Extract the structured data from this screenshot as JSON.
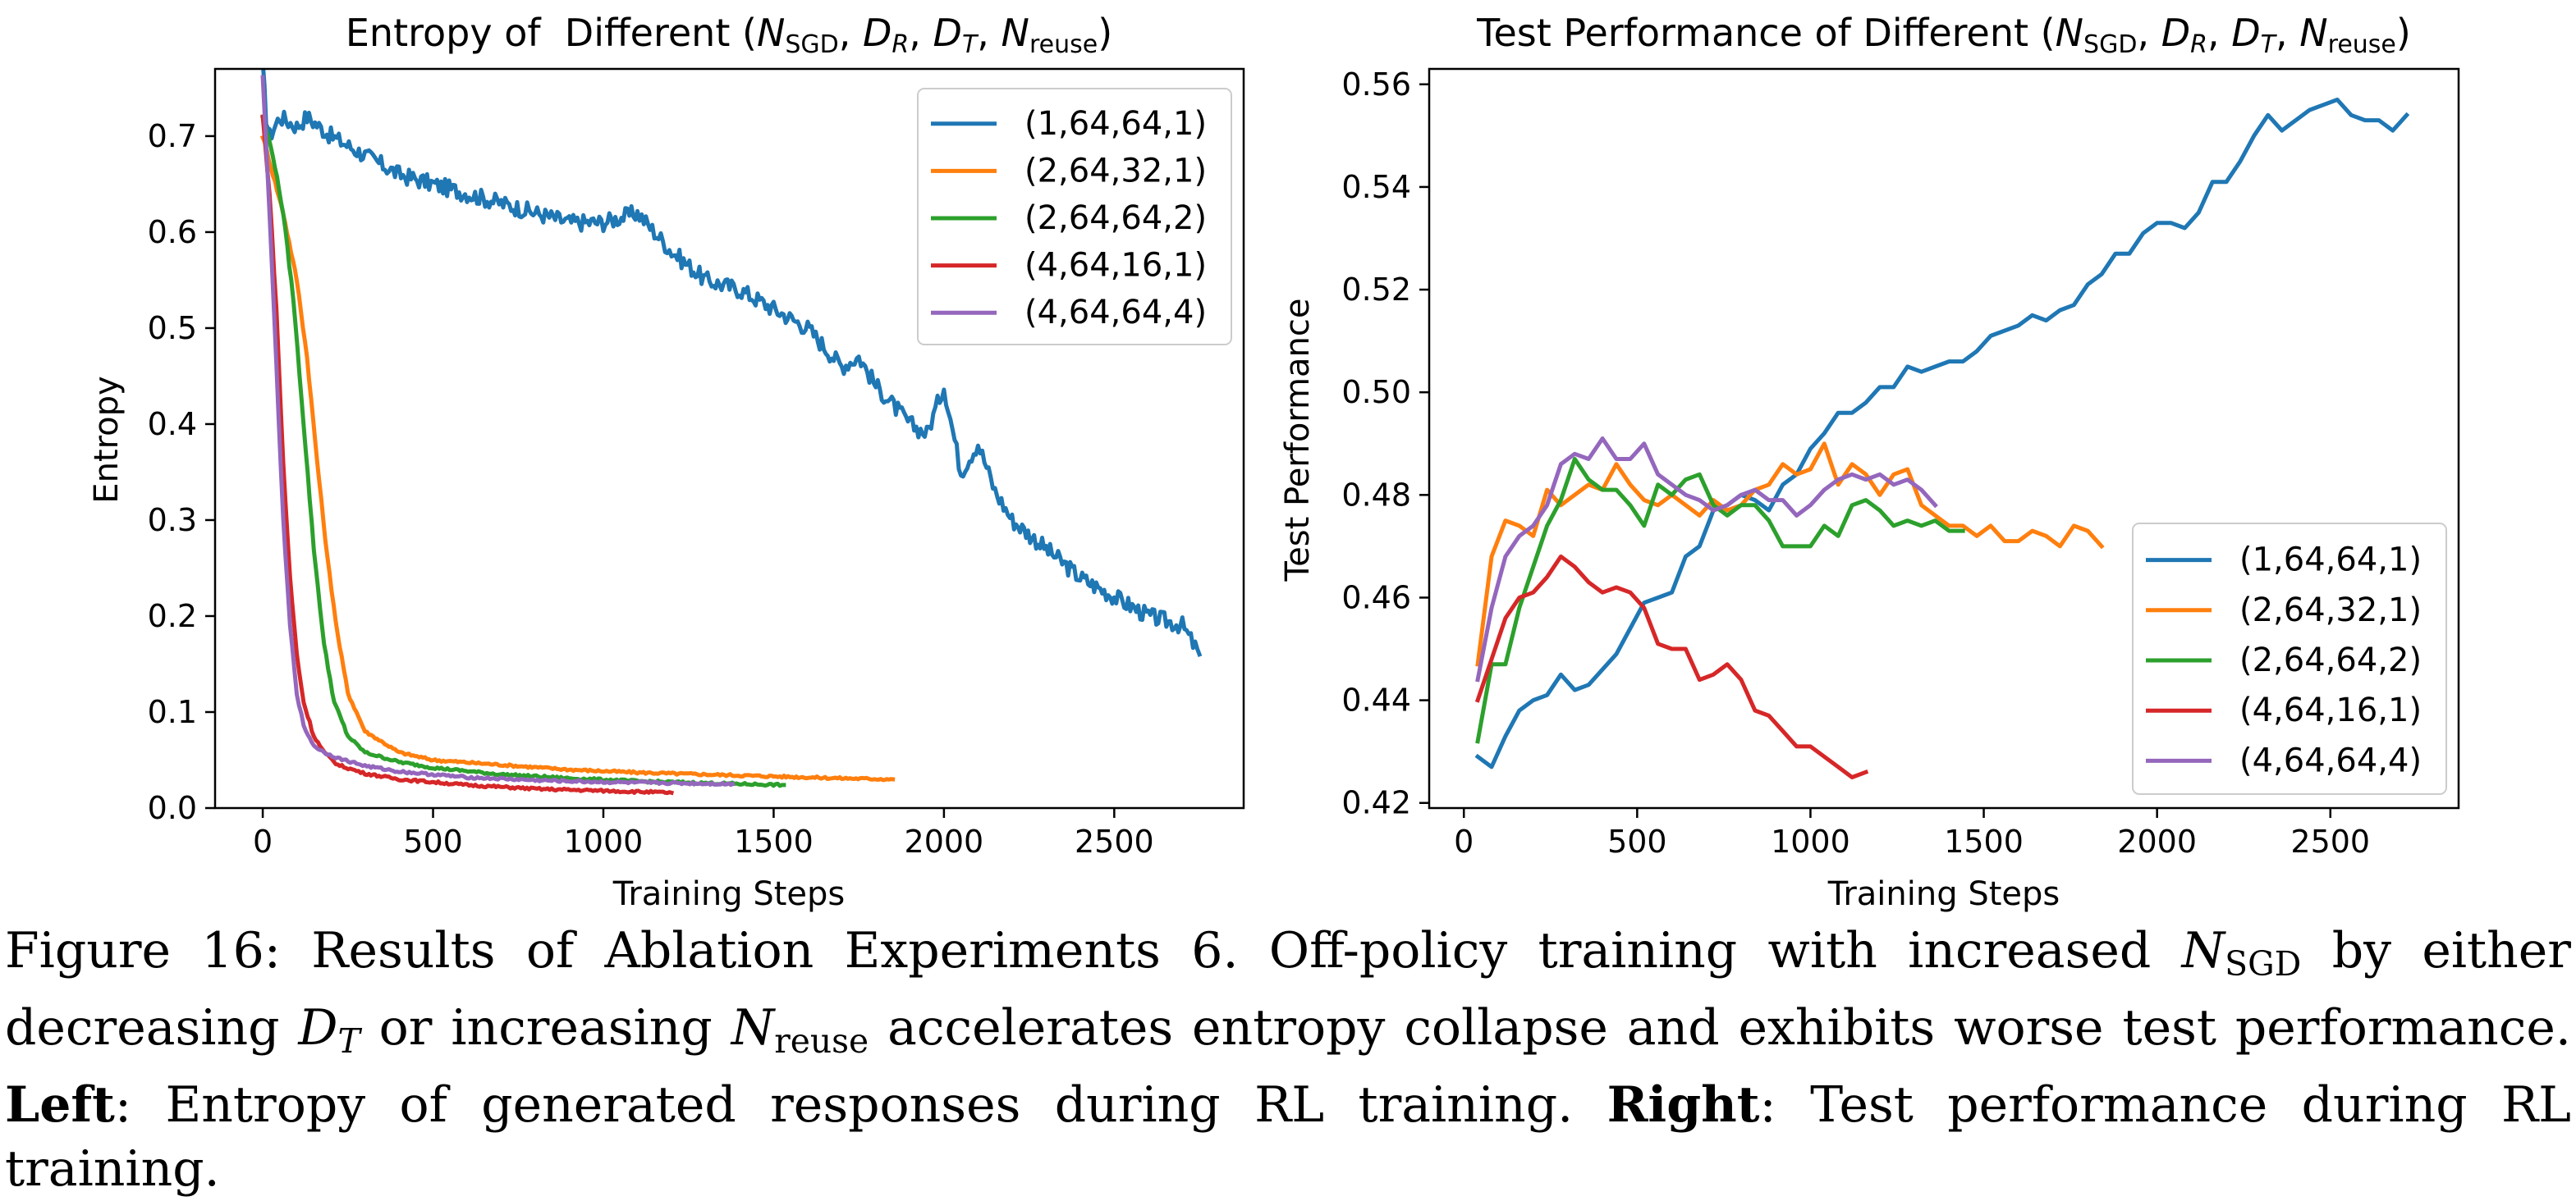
{
  "colors": {
    "blue": "#1f77b4",
    "orange": "#ff7f0e",
    "green": "#2ca02c",
    "red": "#d62728",
    "purple": "#9467bd"
  },
  "chart_data": [
    {
      "type": "line",
      "title": {
        "prefix": "Entropy of  Different (",
        "n": "N",
        "n_sub": "SGD",
        "dr": "D",
        "dr_sub": "R",
        "dt": "D",
        "dt_sub": "T",
        "nr": "N",
        "nr_sub": "reuse",
        "suffix": ")"
      },
      "xlabel": "Training Steps",
      "ylabel": "Entropy",
      "xlim": [
        -140,
        2880
      ],
      "ylim": [
        0.0,
        0.77
      ],
      "xticks": [
        0,
        500,
        1000,
        1500,
        2000,
        2500
      ],
      "xtick_labels": [
        "0",
        "500",
        "1000",
        "1500",
        "2000",
        "2500"
      ],
      "yticks": [
        0.0,
        0.1,
        0.2,
        0.3,
        0.4,
        0.5,
        0.6,
        0.7
      ],
      "ytick_labels": [
        "0.0",
        "0.1",
        "0.2",
        "0.3",
        "0.4",
        "0.5",
        "0.6",
        "0.7"
      ],
      "legend_position": "upper right",
      "grid": false,
      "series": [
        {
          "name": "(1,64,64,1)",
          "color": "#1f77b4",
          "x": [
            0,
            10,
            20,
            50,
            100,
            130,
            200,
            300,
            400,
            500,
            600,
            700,
            800,
            900,
            1000,
            1100,
            1150,
            1200,
            1300,
            1400,
            1500,
            1600,
            1700,
            1750,
            1800,
            1900,
            1950,
            2000,
            2050,
            2100,
            2150,
            2200,
            2300,
            2400,
            2500,
            2600,
            2700,
            2750
          ],
          "y": [
            0.77,
            0.72,
            0.7,
            0.72,
            0.71,
            0.72,
            0.7,
            0.68,
            0.66,
            0.65,
            0.64,
            0.63,
            0.62,
            0.61,
            0.61,
            0.62,
            0.6,
            0.58,
            0.55,
            0.54,
            0.52,
            0.5,
            0.46,
            0.47,
            0.44,
            0.4,
            0.39,
            0.44,
            0.35,
            0.38,
            0.33,
            0.3,
            0.27,
            0.24,
            0.22,
            0.2,
            0.19,
            0.16
          ],
          "jitter": 0.009
        },
        {
          "name": "(2,64,32,1)",
          "color": "#ff7f0e",
          "x": [
            0,
            30,
            60,
            100,
            130,
            160,
            190,
            220,
            250,
            300,
            400,
            500,
            700,
            900,
            1100,
            1300,
            1500,
            1700,
            1850
          ],
          "y": [
            0.7,
            0.66,
            0.62,
            0.55,
            0.47,
            0.36,
            0.26,
            0.18,
            0.12,
            0.08,
            0.058,
            0.05,
            0.045,
            0.04,
            0.037,
            0.035,
            0.033,
            0.031,
            0.03
          ],
          "jitter": 0.002
        },
        {
          "name": "(2,64,64,2)",
          "color": "#2ca02c",
          "x": [
            0,
            30,
            60,
            90,
            120,
            150,
            180,
            210,
            250,
            300,
            400,
            500,
            700,
            900,
            1100,
            1300,
            1530
          ],
          "y": [
            0.72,
            0.68,
            0.62,
            0.53,
            0.4,
            0.27,
            0.17,
            0.11,
            0.075,
            0.058,
            0.048,
            0.042,
            0.035,
            0.031,
            0.028,
            0.026,
            0.024
          ],
          "jitter": 0.002
        },
        {
          "name": "(4,64,16,1)",
          "color": "#d62728",
          "x": [
            0,
            20,
            40,
            60,
            80,
            100,
            120,
            150,
            180,
            220,
            300,
            400,
            600,
            800,
            1000,
            1200
          ],
          "y": [
            0.72,
            0.64,
            0.52,
            0.36,
            0.24,
            0.16,
            0.11,
            0.075,
            0.058,
            0.045,
            0.036,
            0.03,
            0.024,
            0.02,
            0.018,
            0.016
          ],
          "jitter": 0.002
        },
        {
          "name": "(4,64,64,4)",
          "color": "#9467bd",
          "x": [
            0,
            20,
            40,
            60,
            80,
            100,
            120,
            150,
            180,
            220,
            300,
            400,
            600,
            800,
            1000,
            1200,
            1380
          ],
          "y": [
            0.76,
            0.62,
            0.46,
            0.3,
            0.19,
            0.12,
            0.085,
            0.065,
            0.058,
            0.052,
            0.044,
            0.038,
            0.032,
            0.029,
            0.027,
            0.026,
            0.025
          ],
          "jitter": 0.002
        }
      ]
    },
    {
      "type": "line",
      "title": {
        "prefix": "Test Performance of Different (",
        "n": "N",
        "n_sub": "SGD",
        "dr": "D",
        "dr_sub": "R",
        "dt": "D",
        "dt_sub": "T",
        "nr": "N",
        "nr_sub": "reuse",
        "suffix": ")"
      },
      "xlabel": "Training Steps",
      "ylabel": "Test Performance",
      "xlim": [
        -100,
        2870
      ],
      "ylim": [
        0.419,
        0.563
      ],
      "xticks": [
        0,
        500,
        1000,
        1500,
        2000,
        2500
      ],
      "xtick_labels": [
        "0",
        "500",
        "1000",
        "1500",
        "2000",
        "2500"
      ],
      "yticks": [
        0.42,
        0.44,
        0.46,
        0.48,
        0.5,
        0.52,
        0.54,
        0.56
      ],
      "ytick_labels": [
        "0.42",
        "0.44",
        "0.46",
        "0.48",
        "0.50",
        "0.52",
        "0.54",
        "0.56"
      ],
      "legend_position": "lower right",
      "grid": false,
      "series": [
        {
          "name": "(1,64,64,1)",
          "color": "#1f77b4",
          "x": [
            40,
            80,
            120,
            160,
            200,
            240,
            280,
            320,
            360,
            400,
            440,
            480,
            520,
            560,
            600,
            640,
            680,
            720,
            760,
            800,
            840,
            880,
            920,
            960,
            1000,
            1040,
            1080,
            1120,
            1160,
            1200,
            1240,
            1280,
            1320,
            1360,
            1400,
            1440,
            1480,
            1520,
            1560,
            1600,
            1640,
            1680,
            1720,
            1760,
            1800,
            1840,
            1880,
            1920,
            1960,
            2000,
            2040,
            2080,
            2120,
            2160,
            2200,
            2240,
            2280,
            2320,
            2360,
            2400,
            2440,
            2480,
            2520,
            2560,
            2600,
            2640,
            2680,
            2720
          ],
          "y": [
            0.429,
            0.427,
            0.433,
            0.438,
            0.44,
            0.441,
            0.445,
            0.442,
            0.443,
            0.446,
            0.449,
            0.454,
            0.459,
            0.46,
            0.461,
            0.468,
            0.47,
            0.477,
            0.478,
            0.48,
            0.479,
            0.477,
            0.482,
            0.484,
            0.489,
            0.492,
            0.496,
            0.496,
            0.498,
            0.501,
            0.501,
            0.505,
            0.504,
            0.505,
            0.506,
            0.506,
            0.508,
            0.511,
            0.512,
            0.513,
            0.515,
            0.514,
            0.516,
            0.517,
            0.521,
            0.523,
            0.527,
            0.527,
            0.531,
            0.533,
            0.533,
            0.532,
            0.535,
            0.541,
            0.541,
            0.545,
            0.55,
            0.554,
            0.551,
            0.553,
            0.555,
            0.556,
            0.557,
            0.554,
            0.553,
            0.553,
            0.551,
            0.554
          ]
        },
        {
          "name": "(2,64,32,1)",
          "color": "#ff7f0e",
          "x": [
            40,
            80,
            120,
            160,
            200,
            240,
            280,
            320,
            360,
            400,
            440,
            480,
            520,
            560,
            600,
            640,
            680,
            720,
            760,
            800,
            840,
            880,
            920,
            960,
            1000,
            1040,
            1080,
            1120,
            1160,
            1200,
            1240,
            1280,
            1320,
            1360,
            1400,
            1440,
            1480,
            1520,
            1560,
            1600,
            1640,
            1680,
            1720,
            1760,
            1800,
            1840
          ],
          "y": [
            0.447,
            0.468,
            0.475,
            0.474,
            0.472,
            0.481,
            0.478,
            0.48,
            0.482,
            0.481,
            0.486,
            0.482,
            0.479,
            0.478,
            0.48,
            0.478,
            0.476,
            0.479,
            0.477,
            0.478,
            0.481,
            0.482,
            0.486,
            0.484,
            0.485,
            0.49,
            0.482,
            0.486,
            0.484,
            0.48,
            0.484,
            0.485,
            0.478,
            0.476,
            0.474,
            0.474,
            0.472,
            0.474,
            0.471,
            0.471,
            0.473,
            0.472,
            0.47,
            0.474,
            0.473,
            0.47
          ]
        },
        {
          "name": "(2,64,64,2)",
          "color": "#2ca02c",
          "x": [
            40,
            80,
            120,
            160,
            200,
            240,
            280,
            320,
            360,
            400,
            440,
            480,
            520,
            560,
            600,
            640,
            680,
            720,
            760,
            800,
            840,
            880,
            920,
            960,
            1000,
            1040,
            1080,
            1120,
            1160,
            1200,
            1240,
            1280,
            1320,
            1360,
            1400,
            1440
          ],
          "y": [
            0.432,
            0.447,
            0.447,
            0.458,
            0.466,
            0.474,
            0.479,
            0.487,
            0.483,
            0.481,
            0.481,
            0.478,
            0.474,
            0.482,
            0.48,
            0.483,
            0.484,
            0.478,
            0.476,
            0.478,
            0.478,
            0.475,
            0.47,
            0.47,
            0.47,
            0.474,
            0.472,
            0.478,
            0.479,
            0.477,
            0.474,
            0.475,
            0.474,
            0.475,
            0.473,
            0.473
          ]
        },
        {
          "name": "(4,64,16,1)",
          "color": "#d62728",
          "x": [
            40,
            80,
            120,
            160,
            200,
            240,
            280,
            320,
            360,
            400,
            440,
            480,
            520,
            560,
            600,
            640,
            680,
            720,
            760,
            800,
            840,
            880,
            920,
            960,
            1000,
            1040,
            1080,
            1120,
            1160
          ],
          "y": [
            0.44,
            0.448,
            0.456,
            0.46,
            0.461,
            0.464,
            0.468,
            0.466,
            0.463,
            0.461,
            0.462,
            0.461,
            0.458,
            0.451,
            0.45,
            0.45,
            0.444,
            0.445,
            0.447,
            0.444,
            0.438,
            0.437,
            0.434,
            0.431,
            0.431,
            0.429,
            0.427,
            0.425,
            0.426
          ]
        },
        {
          "name": "(4,64,64,4)",
          "color": "#9467bd",
          "x": [
            40,
            80,
            120,
            160,
            200,
            240,
            280,
            320,
            360,
            400,
            440,
            480,
            520,
            560,
            600,
            640,
            680,
            720,
            760,
            800,
            840,
            880,
            920,
            960,
            1000,
            1040,
            1080,
            1120,
            1160,
            1200,
            1240,
            1280,
            1320,
            1360
          ],
          "y": [
            0.444,
            0.458,
            0.468,
            0.472,
            0.474,
            0.478,
            0.486,
            0.488,
            0.487,
            0.491,
            0.487,
            0.487,
            0.49,
            0.484,
            0.482,
            0.48,
            0.479,
            0.477,
            0.478,
            0.48,
            0.481,
            0.479,
            0.479,
            0.476,
            0.478,
            0.481,
            0.483,
            0.484,
            0.483,
            0.484,
            0.482,
            0.483,
            0.481,
            0.478
          ]
        }
      ]
    }
  ],
  "caption": {
    "fig_label": "Figure 16: Results of Ablation Experiments 6. Off-policy training with increased ",
    "n_sym": "N",
    "n_sub": "SGD",
    "part2": " by either decreasing ",
    "dt_sym": "D",
    "dt_sub": "T",
    "part3": " or increasing ",
    "nr_sym": "N",
    "nr_sub": "reuse",
    "part4": " accelerates entropy collapse and exhibits worse test performance. ",
    "left_bold": "Left",
    "left_text": ": Entropy of generated responses during RL training. ",
    "right_bold": "Right",
    "right_text": ": Test performance during RL training."
  }
}
